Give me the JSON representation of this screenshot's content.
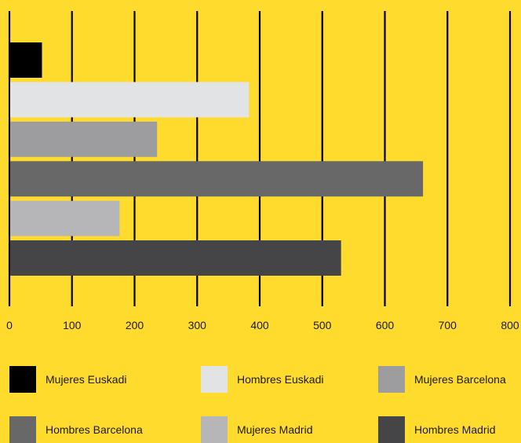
{
  "chart_data": {
    "type": "bar",
    "orientation": "horizontal",
    "title": "",
    "xlabel": "",
    "ylabel": "",
    "xlim": [
      0,
      800
    ],
    "x_ticks": [
      0,
      100,
      200,
      300,
      400,
      500,
      600,
      700,
      800
    ],
    "grid": true,
    "legend_position": "bottom",
    "series": [
      {
        "name": "Mujeres Euskadi",
        "value": 52,
        "color": "#000000"
      },
      {
        "name": "Hombres Euskadi",
        "value": 383,
        "color": "#E2E3E5"
      },
      {
        "name": "Mujeres Barcelona",
        "value": 236,
        "color": "#9D9DA0"
      },
      {
        "name": "Hombres Barcelona",
        "value": 661,
        "color": "#686869"
      },
      {
        "name": "Mujeres Madrid",
        "value": 176,
        "color": "#B6B6B9"
      },
      {
        "name": "Hombres Madrid",
        "value": 530,
        "color": "#454547"
      }
    ]
  }
}
